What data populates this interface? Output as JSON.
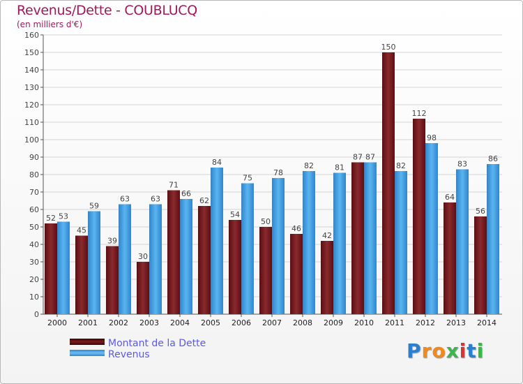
{
  "header": {
    "title": "Revenus/Dette - COUBLUCQ",
    "subtitle": "(en milliers d'€)"
  },
  "brand": {
    "text": "Proxiti"
  },
  "chart_data": {
    "type": "bar",
    "title": "Revenus/Dette - COUBLUCQ",
    "subtitle": "(en milliers d'€)",
    "xlabel": "",
    "ylabel": "",
    "ylim": [
      0,
      160
    ],
    "ytick_step": 10,
    "grid": true,
    "legend_position": "bottom-left",
    "categories": [
      "2000",
      "2001",
      "2002",
      "2003",
      "2004",
      "2005",
      "2006",
      "2007",
      "2008",
      "2009",
      "2010",
      "2011",
      "2012",
      "2013",
      "2014"
    ],
    "series": [
      {
        "name": "Montant de la Dette",
        "color": "#7a1a1f",
        "values": [
          52,
          45,
          39,
          30,
          71,
          62,
          54,
          50,
          46,
          42,
          87,
          150,
          112,
          64,
          56
        ]
      },
      {
        "name": "Revenus",
        "color": "#3c9be0",
        "values": [
          53,
          59,
          63,
          63,
          66,
          84,
          75,
          78,
          82,
          81,
          87,
          82,
          98,
          83,
          86
        ]
      }
    ]
  }
}
